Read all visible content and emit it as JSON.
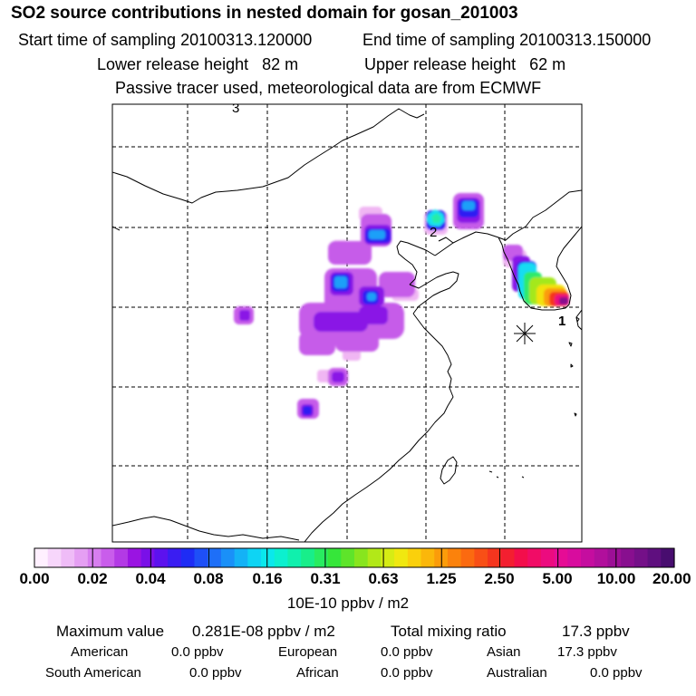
{
  "header": {
    "title": "SO2 source contributions in nested domain for gosan_201003",
    "start_label": "Start time of sampling 20100313.120000",
    "end_label": "End time of sampling 20100313.150000",
    "lower_label": "Lower release height   82 m",
    "upper_label": "Upper release height   62 m",
    "note": "Passive tracer used, meteorological data are from ECMWF"
  },
  "map": {
    "site_labels": [
      "3",
      "2",
      "1"
    ]
  },
  "colorbar": {
    "ticks": [
      "0.00",
      "0.02",
      "0.04",
      "0.08",
      "0.16",
      "0.31",
      "0.63",
      "1.25",
      "2.50",
      "5.00",
      "10.00",
      "20.00"
    ],
    "units": "10E-10 ppbv / m2",
    "colors": [
      "#fff0ff",
      "#f7d6fb",
      "#efbcf7",
      "#e59ff3",
      "#d77eef",
      "#c95deb",
      "#b33ae5",
      "#9a14e2",
      "#7a10e8",
      "#5c12ee",
      "#3a1df2",
      "#1e2cf5",
      "#1e4ff7",
      "#1e6ff8",
      "#1a90f8",
      "#14b2f6",
      "#0ed4f4",
      "#0ae8ec",
      "#0cf0cf",
      "#10f0ad",
      "#18ee8a",
      "#28ec60",
      "#36e63a",
      "#5ee42a",
      "#88e51e",
      "#b2e818",
      "#d6ec14",
      "#f0e810",
      "#fad00c",
      "#fbb70a",
      "#fb9c0a",
      "#fb820c",
      "#fb6a10",
      "#f84f16",
      "#f5351e",
      "#f31f30",
      "#f30e4b",
      "#f10c66",
      "#ec0b7f",
      "#e60c95",
      "#d80c9e",
      "#c50d9f",
      "#b10f9c",
      "#9c0f96",
      "#880f8f",
      "#741088",
      "#5f0f7f",
      "#480d6f"
    ]
  },
  "stats": {
    "max_label": "Maximum value",
    "max_value": "0.281E-08 ppbv / m2",
    "total_label": "Total mixing ratio",
    "total_value": "17.3 ppbv",
    "regions": [
      {
        "name": "American",
        "value": "0.0 ppbv"
      },
      {
        "name": "European",
        "value": "0.0 ppbv"
      },
      {
        "name": "Asian",
        "value": "17.3 ppbv"
      },
      {
        "name": "South American",
        "value": "0.0 ppbv"
      },
      {
        "name": "African",
        "value": "0.0 ppbv"
      },
      {
        "name": "Australian",
        "value": "0.0 ppbv"
      }
    ]
  }
}
